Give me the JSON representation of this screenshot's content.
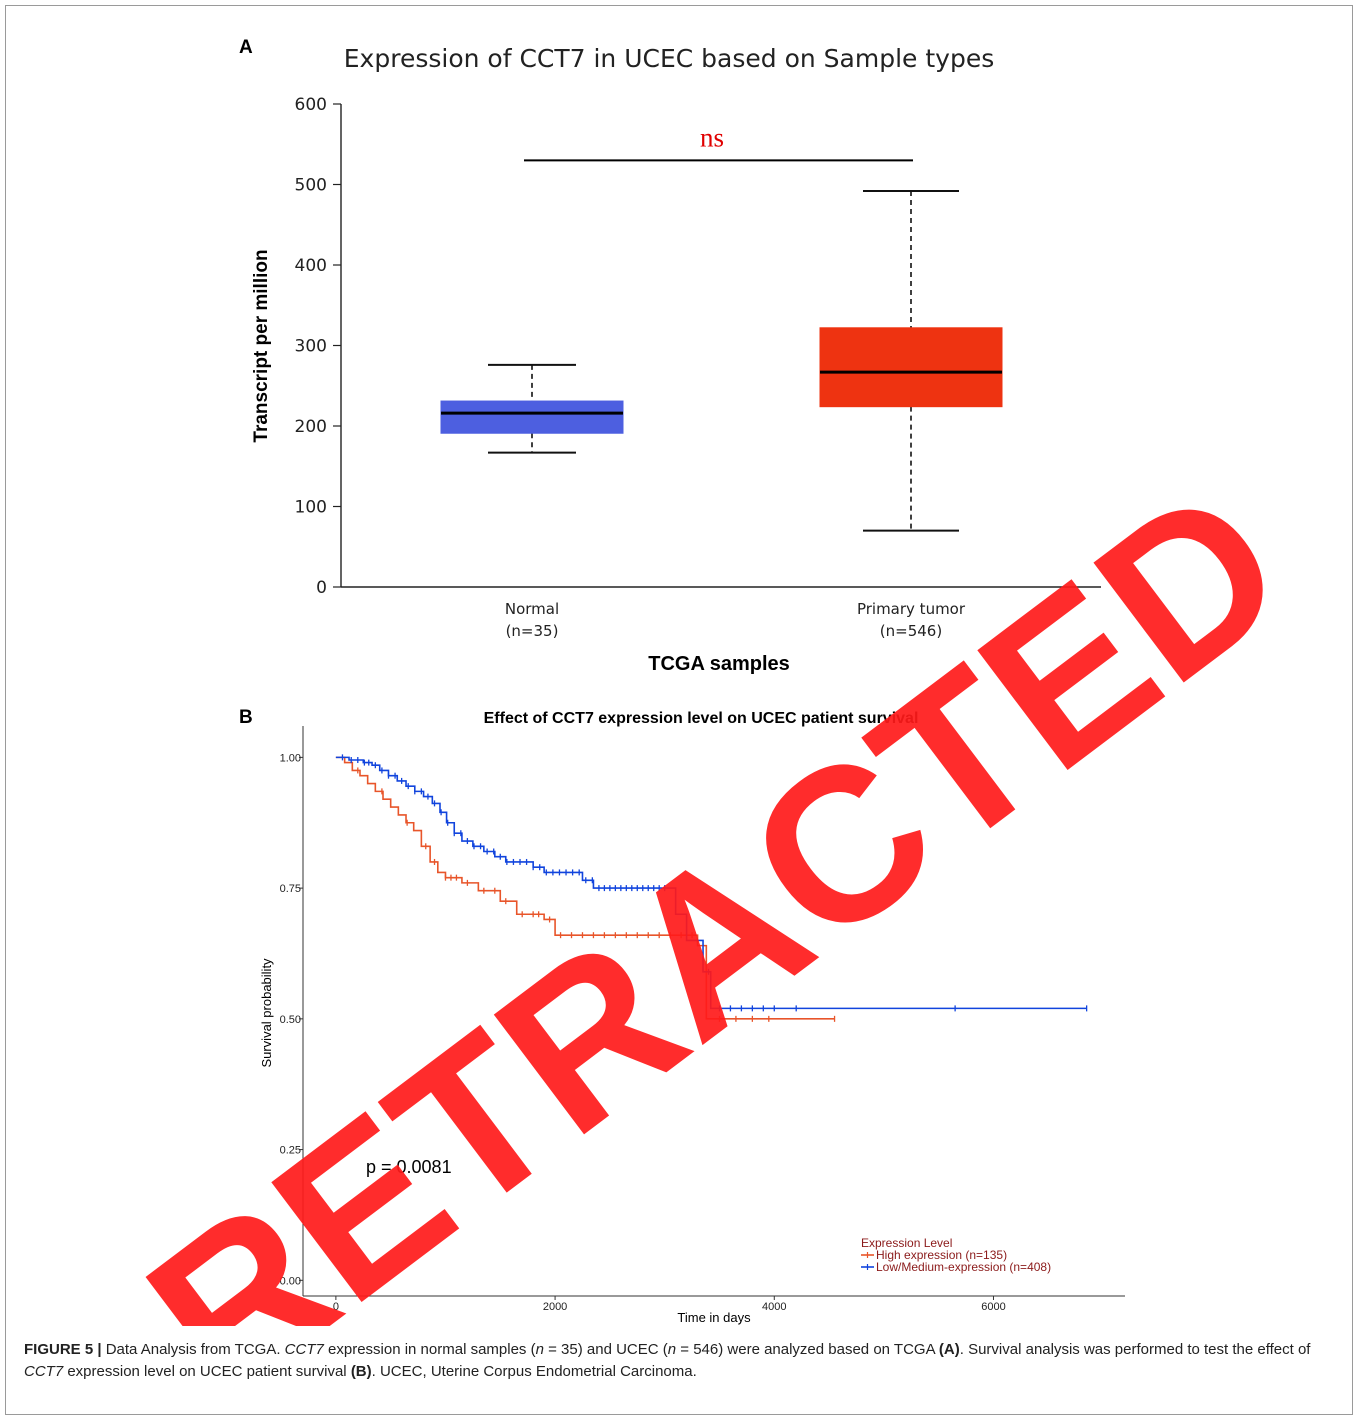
{
  "chart_data": [
    {
      "type": "box",
      "panel": "A",
      "title": "Expression of CCT7 in UCEC based on Sample types",
      "xlabel": "TCGA samples",
      "ylabel": "Transcript per million",
      "ylim": [
        0,
        600
      ],
      "yticks": [
        0,
        100,
        200,
        300,
        400,
        500,
        600
      ],
      "categories": [
        {
          "name": "Normal",
          "n_label": "(n=35)",
          "whisker_low": 167,
          "q1": 191,
          "median": 216,
          "q3": 231,
          "whisker_high": 276,
          "color": "#4d5fe0"
        },
        {
          "name": "Primary tumor",
          "n_label": "(n=546)",
          "whisker_low": 70,
          "q1": 224,
          "median": 267,
          "q3": 322,
          "whisker_high": 492,
          "color": "#ee3311"
        }
      ],
      "significance": {
        "label": "ns",
        "y": 530,
        "color": "#e00000"
      }
    },
    {
      "type": "line",
      "subtype": "kaplan-meier",
      "panel": "B",
      "title": "Effect of CCT7 expression level on UCEC patient survival",
      "xlabel": "Time in days",
      "ylabel": "Survival probability",
      "xlim": [
        -300,
        7200
      ],
      "ylim": [
        -0.03,
        1.06
      ],
      "xticks": [
        0,
        2000,
        4000,
        6000
      ],
      "yticks": [
        "0.00",
        "0.25",
        "0.50",
        "0.75",
        "1.00"
      ],
      "pvalue_text": "p = 0.0081",
      "legend_title": "Expression Level",
      "legend_position": "bottom-right",
      "series": [
        {
          "name": "High expression (n=135)",
          "color": "#e8552a",
          "steps": [
            [
              0,
              1.0
            ],
            [
              80,
              0.99
            ],
            [
              150,
              0.975
            ],
            [
              220,
              0.965
            ],
            [
              290,
              0.95
            ],
            [
              360,
              0.935
            ],
            [
              430,
              0.92
            ],
            [
              500,
              0.905
            ],
            [
              570,
              0.89
            ],
            [
              640,
              0.875
            ],
            [
              710,
              0.86
            ],
            [
              780,
              0.83
            ],
            [
              860,
              0.8
            ],
            [
              930,
              0.78
            ],
            [
              1000,
              0.77
            ],
            [
              1150,
              0.76
            ],
            [
              1300,
              0.745
            ],
            [
              1500,
              0.725
            ],
            [
              1650,
              0.7
            ],
            [
              1900,
              0.69
            ],
            [
              2000,
              0.66
            ],
            [
              3300,
              0.64
            ],
            [
              3380,
              0.5
            ],
            [
              4550,
              0.5
            ]
          ],
          "censor_x": [
            200,
            420,
            650,
            820,
            900,
            1000,
            1050,
            1100,
            1200,
            1350,
            1450,
            1550,
            1700,
            1800,
            1850,
            1950,
            2050,
            2150,
            2250,
            2350,
            2450,
            2550,
            2650,
            2750,
            2850,
            2950,
            3050,
            3150,
            3250,
            3500,
            3650,
            3800,
            3950,
            4550
          ]
        },
        {
          "name": "Low/Medium-expression (n=408)",
          "color": "#1144dd",
          "steps": [
            [
              0,
              1.0
            ],
            [
              120,
              0.995
            ],
            [
              250,
              0.99
            ],
            [
              330,
              0.985
            ],
            [
              400,
              0.975
            ],
            [
              480,
              0.965
            ],
            [
              560,
              0.955
            ],
            [
              640,
              0.945
            ],
            [
              720,
              0.935
            ],
            [
              800,
              0.925
            ],
            [
              880,
              0.912
            ],
            [
              950,
              0.895
            ],
            [
              1010,
              0.875
            ],
            [
              1080,
              0.855
            ],
            [
              1150,
              0.84
            ],
            [
              1250,
              0.83
            ],
            [
              1350,
              0.82
            ],
            [
              1450,
              0.81
            ],
            [
              1550,
              0.8
            ],
            [
              1800,
              0.79
            ],
            [
              1900,
              0.78
            ],
            [
              2250,
              0.765
            ],
            [
              2350,
              0.75
            ],
            [
              3100,
              0.7
            ],
            [
              3200,
              0.65
            ],
            [
              3350,
              0.59
            ],
            [
              3420,
              0.52
            ],
            [
              6850,
              0.52
            ]
          ],
          "censor_x": [
            60,
            140,
            200,
            260,
            300,
            360,
            420,
            480,
            540,
            600,
            660,
            720,
            780,
            840,
            900,
            960,
            1020,
            1080,
            1140,
            1200,
            1260,
            1320,
            1380,
            1440,
            1500,
            1560,
            1620,
            1680,
            1740,
            1800,
            1860,
            1920,
            1980,
            2040,
            2100,
            2160,
            2220,
            2280,
            2340,
            2400,
            2450,
            2500,
            2550,
            2600,
            2650,
            2700,
            2750,
            2800,
            2850,
            2900,
            2950,
            3000,
            3400,
            3500,
            3600,
            3700,
            3800,
            3900,
            4000,
            4200,
            5650,
            6850
          ]
        }
      ]
    }
  ],
  "panel_labels": {
    "a": "A",
    "b": "B"
  },
  "watermark": "RETRACTED",
  "caption": {
    "figure_label": "FIGURE 5 |",
    "seg1": " Data Analysis from TCGA. ",
    "gene1": "CCT7",
    "seg2": " expression in normal samples (",
    "n1": "n",
    "seg3": " = 35) and UCEC (",
    "n2": "n",
    "seg4": " = 546) were analyzed based on TCGA ",
    "ref_a": "(A)",
    "seg5": ". Survival analysis was performed to test the effect of ",
    "gene2": "CCT7",
    "seg6": " expression level on UCEC patient survival ",
    "ref_b": "(B)",
    "seg7": ". UCEC, Uterine Corpus Endometrial Carcinoma."
  }
}
